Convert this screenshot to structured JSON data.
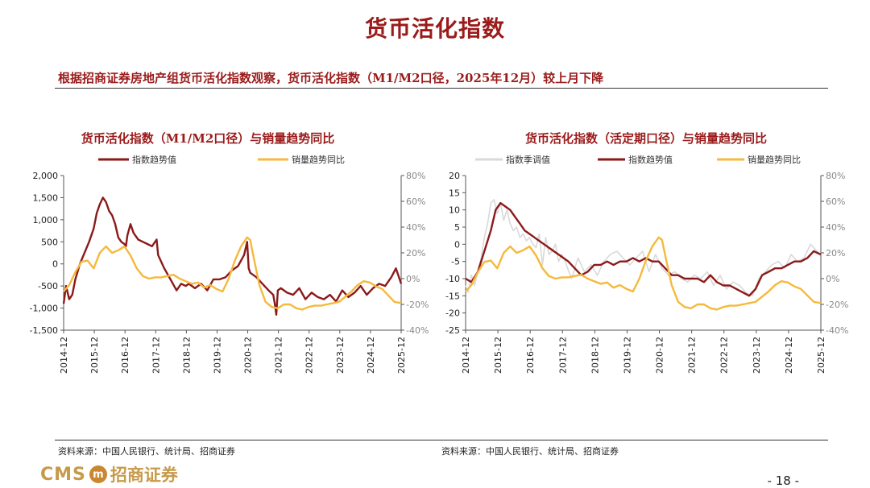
{
  "page": {
    "title": "货币活化指数",
    "subtitle": "根据招商证券房地产组货币活化指数观察，货币活化指数（M1/M2口径，2025年12月）较上月下降",
    "source_left": "资料来源：中国人民银行、统计局、招商证券",
    "source_right": "资料来源：中国人民银行、统计局、招商证券",
    "logo_text": "CMS",
    "logo_mark": "m",
    "logo_name": "招商证券",
    "page_number": "- 18 -"
  },
  "colors": {
    "title": "#9b1b1b",
    "index_line": "#8b1a1a",
    "sales_line": "#f5b93c",
    "seasonal_line": "#d9d9d9"
  },
  "chart_data": [
    {
      "type": "line",
      "title": "货币活化指数（M1/M2口径）与销量趋势同比",
      "categories": [
        "2014-12",
        "2015-12",
        "2016-12",
        "2017-12",
        "2018-12",
        "2019-12",
        "2020-12",
        "2021-12",
        "2022-12",
        "2023-12",
        "2024-12",
        "2025-12"
      ],
      "x_range": [
        2014.92,
        2025.92
      ],
      "y_left": {
        "min": -1500,
        "max": 2000,
        "ticks": [
          2000,
          1500,
          1000,
          500,
          0,
          -500,
          -1000,
          -1500
        ],
        "labels": [
          "2,000",
          "1,500",
          "1,000",
          "500",
          "0",
          "-500",
          "-1,000",
          "-1,500"
        ]
      },
      "y_right": {
        "min": -40,
        "max": 80,
        "ticks": [
          80,
          60,
          40,
          20,
          0,
          -20,
          -40
        ],
        "labels": [
          "80%",
          "60%",
          "40%",
          "20%",
          "0%",
          "-20%",
          "-40%"
        ]
      },
      "series": [
        {
          "name": "指数趋势值",
          "axis": "left",
          "color": "#8b1a1a",
          "x": [
            2014.92,
            2015.0,
            2015.1,
            2015.2,
            2015.3,
            2015.45,
            2015.6,
            2015.75,
            2015.9,
            2016.0,
            2016.1,
            2016.2,
            2016.3,
            2016.4,
            2016.5,
            2016.6,
            2016.7,
            2016.8,
            2016.9,
            2016.95,
            2017.0,
            2017.1,
            2017.2,
            2017.35,
            2017.5,
            2017.65,
            2017.8,
            2017.95,
            2018.0,
            2018.2,
            2018.4,
            2018.6,
            2018.75,
            2018.9,
            2019.0,
            2019.2,
            2019.4,
            2019.6,
            2019.8,
            2020.0,
            2020.2,
            2020.4,
            2020.6,
            2020.8,
            2020.9,
            2020.95,
            2021.0,
            2021.2,
            2021.4,
            2021.6,
            2021.75,
            2021.8,
            2021.85,
            2021.9,
            2022.0,
            2022.2,
            2022.4,
            2022.6,
            2022.8,
            2023.0,
            2023.2,
            2023.4,
            2023.6,
            2023.8,
            2024.0,
            2024.2,
            2024.4,
            2024.6,
            2024.8,
            2025.0,
            2025.2,
            2025.4,
            2025.6,
            2025.75,
            2025.92
          ],
          "values": [
            -900,
            -500,
            -800,
            -700,
            -350,
            0,
            250,
            500,
            800,
            1150,
            1350,
            1500,
            1400,
            1200,
            1100,
            900,
            600,
            500,
            450,
            400,
            650,
            900,
            700,
            550,
            500,
            450,
            400,
            550,
            200,
            -100,
            -350,
            -600,
            -450,
            -500,
            -450,
            -550,
            -450,
            -600,
            -350,
            -350,
            -300,
            -150,
            -50,
            200,
            500,
            -100,
            -200,
            -300,
            -450,
            -600,
            -700,
            -900,
            -1150,
            -600,
            -550,
            -650,
            -700,
            -550,
            -800,
            -650,
            -750,
            -800,
            -700,
            -850,
            -600,
            -750,
            -650,
            -500,
            -700,
            -550,
            -450,
            -500,
            -300,
            -100,
            -450
          ]
        },
        {
          "name": "销量趋势同比",
          "axis": "right",
          "color": "#f5b93c",
          "x": [
            2014.92,
            2015.1,
            2015.3,
            2015.5,
            2015.7,
            2015.9,
            2016.1,
            2016.3,
            2016.5,
            2016.7,
            2016.9,
            2017.1,
            2017.3,
            2017.5,
            2017.7,
            2017.9,
            2018.1,
            2018.3,
            2018.5,
            2018.7,
            2018.9,
            2019.1,
            2019.3,
            2019.5,
            2019.7,
            2019.9,
            2020.1,
            2020.3,
            2020.5,
            2020.7,
            2020.9,
            2021.0,
            2021.1,
            2021.3,
            2021.5,
            2021.7,
            2021.9,
            2022.1,
            2022.3,
            2022.5,
            2022.7,
            2022.9,
            2023.1,
            2023.3,
            2023.5,
            2023.7,
            2023.9,
            2024.1,
            2024.3,
            2024.5,
            2024.7,
            2024.9,
            2025.1,
            2025.3,
            2025.5,
            2025.7,
            2025.92
          ],
          "values": [
            -10,
            -5,
            5,
            13,
            14,
            8,
            20,
            25,
            20,
            22,
            25,
            18,
            8,
            2,
            0,
            1,
            1,
            2,
            3,
            0,
            -2,
            -4,
            -3,
            -7,
            -5,
            -8,
            -10,
            0,
            14,
            25,
            32,
            30,
            18,
            -5,
            -18,
            -22,
            -23,
            -20,
            -20,
            -23,
            -24,
            -22,
            -21,
            -21,
            -20,
            -19,
            -18,
            -14,
            -10,
            -5,
            -2,
            -3,
            -6,
            -8,
            -13,
            -18,
            -19
          ]
        }
      ]
    },
    {
      "type": "line",
      "title": "货币活化指数（活定期口径）与销量趋势同比",
      "categories": [
        "2014-12",
        "2015-12",
        "2016-12",
        "2017-12",
        "2018-12",
        "2019-12",
        "2020-12",
        "2021-12",
        "2022-12",
        "2023-12",
        "2024-12",
        "2025-12"
      ],
      "x_range": [
        2014.92,
        2025.92
      ],
      "y_left": {
        "min": -25,
        "max": 20,
        "ticks": [
          20,
          15,
          10,
          5,
          0,
          -5,
          -10,
          -15,
          -20,
          -25
        ],
        "labels": [
          "20",
          "15",
          "10",
          "5",
          "0",
          "-5",
          "-10",
          "-15",
          "-20",
          "-25"
        ]
      },
      "y_right": {
        "min": -40,
        "max": 80,
        "ticks": [
          80,
          60,
          40,
          20,
          0,
          -20,
          -40
        ],
        "labels": [
          "80%",
          "60%",
          "40%",
          "20%",
          "0%",
          "-20%",
          "-40%"
        ]
      },
      "series": [
        {
          "name": "指数季调值",
          "axis": "left",
          "color": "#d9d9d9",
          "x": [
            2014.92,
            2015.0,
            2015.1,
            2015.2,
            2015.3,
            2015.4,
            2015.5,
            2015.6,
            2015.7,
            2015.8,
            2015.9,
            2016.0,
            2016.1,
            2016.2,
            2016.3,
            2016.4,
            2016.5,
            2016.6,
            2016.7,
            2016.8,
            2016.9,
            2017.0,
            2017.1,
            2017.2,
            2017.3,
            2017.4,
            2017.5,
            2017.6,
            2017.7,
            2017.8,
            2017.9,
            2018.0,
            2018.2,
            2018.4,
            2018.6,
            2018.8,
            2019.0,
            2019.2,
            2019.4,
            2019.6,
            2019.8,
            2020.0,
            2020.2,
            2020.4,
            2020.6,
            2020.8,
            2021.0,
            2021.2,
            2021.4,
            2021.6,
            2021.8,
            2022.0,
            2022.2,
            2022.4,
            2022.6,
            2022.8,
            2023.0,
            2023.2,
            2023.4,
            2023.6,
            2023.8,
            2024.0,
            2024.2,
            2024.4,
            2024.6,
            2024.8,
            2025.0,
            2025.2,
            2025.4,
            2025.6,
            2025.8,
            2025.92
          ],
          "values": [
            -12,
            -14,
            -9,
            -12,
            -8,
            -4,
            2,
            6,
            12,
            13,
            9,
            12,
            7,
            10,
            6,
            4,
            5,
            2,
            3,
            1,
            2,
            0,
            -1,
            3,
            -6,
            2,
            -3,
            -2,
            0,
            -5,
            -3,
            -5,
            -10,
            -4,
            -8,
            -6,
            -9,
            -5,
            -3,
            -2,
            -4,
            -6,
            -4,
            -2,
            -8,
            -3,
            -7,
            -9,
            -8,
            -10,
            -11,
            -9,
            -10,
            -8,
            -12,
            -9,
            -13,
            -11,
            -12,
            -14,
            -15,
            -10,
            -8,
            -6,
            -5,
            -7,
            -3,
            -5,
            -4,
            0,
            -2,
            -3
          ]
        },
        {
          "name": "指数趋势值",
          "axis": "left",
          "color": "#8b1a1a",
          "x": [
            2014.92,
            2015.1,
            2015.3,
            2015.5,
            2015.7,
            2015.85,
            2016.0,
            2016.15,
            2016.3,
            2016.45,
            2016.6,
            2016.75,
            2016.9,
            2017.05,
            2017.2,
            2017.35,
            2017.5,
            2017.65,
            2017.8,
            2017.95,
            2018.1,
            2018.3,
            2018.5,
            2018.7,
            2018.9,
            2019.1,
            2019.3,
            2019.5,
            2019.7,
            2019.9,
            2020.1,
            2020.3,
            2020.5,
            2020.7,
            2020.9,
            2021.1,
            2021.3,
            2021.5,
            2021.7,
            2021.9,
            2022.1,
            2022.3,
            2022.5,
            2022.7,
            2022.9,
            2023.1,
            2023.3,
            2023.5,
            2023.7,
            2023.9,
            2024.1,
            2024.3,
            2024.5,
            2024.7,
            2024.9,
            2025.1,
            2025.3,
            2025.5,
            2025.7,
            2025.92
          ],
          "values": [
            -10,
            -11,
            -8,
            -2,
            4,
            10,
            12,
            11,
            10,
            8,
            6,
            4,
            3,
            2,
            1,
            0,
            -1,
            -2,
            -3,
            -4,
            -5,
            -7,
            -9,
            -8,
            -6,
            -6,
            -5,
            -6,
            -5,
            -5,
            -4,
            -5,
            -4,
            -5,
            -5,
            -7,
            -9,
            -9,
            -10,
            -10,
            -10,
            -11,
            -9,
            -11,
            -12,
            -12,
            -13,
            -14,
            -15,
            -13,
            -9,
            -8,
            -7,
            -7,
            -6,
            -5,
            -5,
            -4,
            -2,
            -3
          ]
        },
        {
          "name": "销量趋势同比",
          "axis": "right",
          "color": "#f5b93c",
          "x": [
            2014.92,
            2015.1,
            2015.3,
            2015.5,
            2015.7,
            2015.9,
            2016.1,
            2016.3,
            2016.5,
            2016.7,
            2016.9,
            2017.1,
            2017.3,
            2017.5,
            2017.7,
            2017.9,
            2018.1,
            2018.3,
            2018.5,
            2018.7,
            2018.9,
            2019.1,
            2019.3,
            2019.5,
            2019.7,
            2019.9,
            2020.1,
            2020.3,
            2020.5,
            2020.7,
            2020.9,
            2021.0,
            2021.1,
            2021.3,
            2021.5,
            2021.7,
            2021.9,
            2022.1,
            2022.3,
            2022.5,
            2022.7,
            2022.9,
            2023.1,
            2023.3,
            2023.5,
            2023.7,
            2023.9,
            2024.1,
            2024.3,
            2024.5,
            2024.7,
            2024.9,
            2025.1,
            2025.3,
            2025.5,
            2025.7,
            2025.92
          ],
          "values": [
            -10,
            -5,
            5,
            13,
            14,
            8,
            20,
            25,
            20,
            22,
            25,
            18,
            8,
            2,
            0,
            1,
            1,
            2,
            3,
            0,
            -2,
            -4,
            -3,
            -7,
            -5,
            -8,
            -10,
            0,
            14,
            25,
            32,
            30,
            18,
            -5,
            -18,
            -22,
            -23,
            -20,
            -20,
            -23,
            -24,
            -22,
            -21,
            -21,
            -20,
            -19,
            -18,
            -14,
            -10,
            -5,
            -2,
            -3,
            -6,
            -8,
            -13,
            -18,
            -19
          ]
        }
      ]
    }
  ]
}
